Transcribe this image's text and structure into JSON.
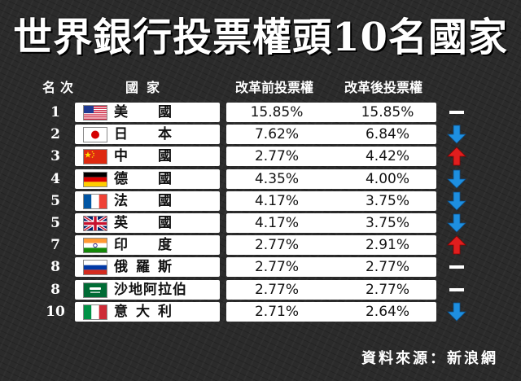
{
  "title": "世界銀行投票權頭10名國家",
  "headers": {
    "rank": "名次",
    "country": "國家",
    "before": "改革前投票權",
    "after": "改革後投票權"
  },
  "source": "資料來源：新浪網",
  "colors": {
    "up": "#e01e1e",
    "down": "#1e8fe0",
    "same": "#ffffff"
  },
  "chart_data": {
    "type": "table",
    "title": "世界銀行投票權頭10名國家",
    "columns": [
      "名次",
      "國家",
      "改革前投票權",
      "改革後投票權"
    ],
    "rows": [
      {
        "rank": "1",
        "country": "美　國",
        "flag": "us-flag-icon",
        "before": "15.85%",
        "after": "15.85%",
        "trend": "same"
      },
      {
        "rank": "2",
        "country": "日　本",
        "flag": "japan-flag-icon",
        "before": "7.62%",
        "after": "6.84%",
        "trend": "down"
      },
      {
        "rank": "3",
        "country": "中　國",
        "flag": "china-flag-icon",
        "before": "2.77%",
        "after": "4.42%",
        "trend": "up"
      },
      {
        "rank": "4",
        "country": "德　國",
        "flag": "germany-flag-icon",
        "before": "4.35%",
        "after": "4.00%",
        "trend": "down"
      },
      {
        "rank": "5",
        "country": "法　國",
        "flag": "france-flag-icon",
        "before": "4.17%",
        "after": "3.75%",
        "trend": "down"
      },
      {
        "rank": "5",
        "country": "英　國",
        "flag": "uk-flag-icon",
        "before": "4.17%",
        "after": "3.75%",
        "trend": "down"
      },
      {
        "rank": "7",
        "country": "印　度",
        "flag": "india-flag-icon",
        "before": "2.77%",
        "after": "2.91%",
        "trend": "up"
      },
      {
        "rank": "8",
        "country": "俄羅斯",
        "flag": "russia-flag-icon",
        "before": "2.77%",
        "after": "2.77%",
        "trend": "same"
      },
      {
        "rank": "8",
        "country": "沙地阿拉伯",
        "flag": "saudi-flag-icon",
        "before": "2.77%",
        "after": "2.77%",
        "trend": "same"
      },
      {
        "rank": "10",
        "country": "意大利",
        "flag": "italy-flag-icon",
        "before": "2.71%",
        "after": "2.64%",
        "trend": "down"
      }
    ]
  }
}
